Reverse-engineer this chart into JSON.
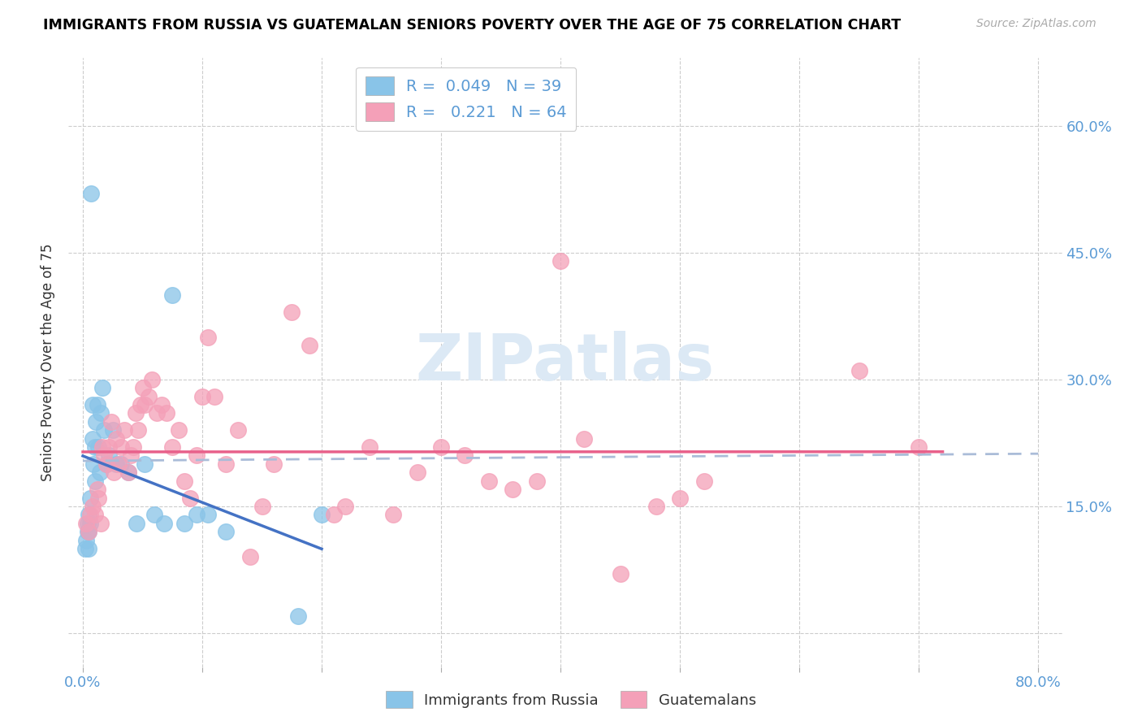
{
  "title": "IMMIGRANTS FROM RUSSIA VS GUATEMALAN SENIORS POVERTY OVER THE AGE OF 75 CORRELATION CHART",
  "source": "Source: ZipAtlas.com",
  "ylabel": "Seniors Poverty Over the Age of 75",
  "legend_r1": "R =  0.049   N = 39",
  "legend_r2": "R =   0.221   N = 64",
  "legend_label1": "Immigrants from Russia",
  "legend_label2": "Guatemalans",
  "blue_color": "#89C4E8",
  "pink_color": "#F4A0B8",
  "blue_line_color": "#4472C4",
  "pink_line_color": "#E8608A",
  "dash_line_color": "#AABCD8",
  "watermark_color": "#DCE9F5",
  "blue_x": [
    0.002,
    0.003,
    0.004,
    0.004,
    0.005,
    0.005,
    0.005,
    0.006,
    0.006,
    0.007,
    0.008,
    0.008,
    0.009,
    0.01,
    0.01,
    0.011,
    0.012,
    0.013,
    0.014,
    0.015,
    0.016,
    0.018,
    0.02,
    0.022,
    0.025,
    0.028,
    0.032,
    0.038,
    0.045,
    0.052,
    0.06,
    0.068,
    0.075,
    0.085,
    0.095,
    0.105,
    0.12,
    0.18,
    0.2
  ],
  "blue_y": [
    0.1,
    0.11,
    0.12,
    0.13,
    0.1,
    0.12,
    0.14,
    0.13,
    0.16,
    0.52,
    0.23,
    0.27,
    0.2,
    0.18,
    0.22,
    0.25,
    0.27,
    0.22,
    0.19,
    0.26,
    0.29,
    0.24,
    0.2,
    0.21,
    0.24,
    0.2,
    0.2,
    0.19,
    0.13,
    0.2,
    0.14,
    0.13,
    0.4,
    0.13,
    0.14,
    0.14,
    0.12,
    0.02,
    0.14
  ],
  "pink_x": [
    0.003,
    0.005,
    0.006,
    0.008,
    0.01,
    0.012,
    0.013,
    0.015,
    0.016,
    0.018,
    0.02,
    0.022,
    0.024,
    0.026,
    0.028,
    0.03,
    0.032,
    0.035,
    0.038,
    0.04,
    0.042,
    0.044,
    0.046,
    0.048,
    0.05,
    0.052,
    0.055,
    0.058,
    0.062,
    0.066,
    0.07,
    0.075,
    0.08,
    0.085,
    0.09,
    0.095,
    0.1,
    0.105,
    0.11,
    0.12,
    0.13,
    0.14,
    0.15,
    0.16,
    0.175,
    0.19,
    0.21,
    0.22,
    0.24,
    0.26,
    0.28,
    0.3,
    0.32,
    0.34,
    0.36,
    0.38,
    0.4,
    0.42,
    0.45,
    0.48,
    0.5,
    0.52,
    0.65,
    0.7
  ],
  "pink_y": [
    0.13,
    0.12,
    0.14,
    0.15,
    0.14,
    0.17,
    0.16,
    0.13,
    0.22,
    0.21,
    0.2,
    0.22,
    0.25,
    0.19,
    0.23,
    0.2,
    0.22,
    0.24,
    0.19,
    0.21,
    0.22,
    0.26,
    0.24,
    0.27,
    0.29,
    0.27,
    0.28,
    0.3,
    0.26,
    0.27,
    0.26,
    0.22,
    0.24,
    0.18,
    0.16,
    0.21,
    0.28,
    0.35,
    0.28,
    0.2,
    0.24,
    0.09,
    0.15,
    0.2,
    0.38,
    0.34,
    0.14,
    0.15,
    0.22,
    0.14,
    0.19,
    0.22,
    0.21,
    0.18,
    0.17,
    0.18,
    0.44,
    0.23,
    0.07,
    0.15,
    0.16,
    0.18,
    0.31,
    0.22
  ]
}
